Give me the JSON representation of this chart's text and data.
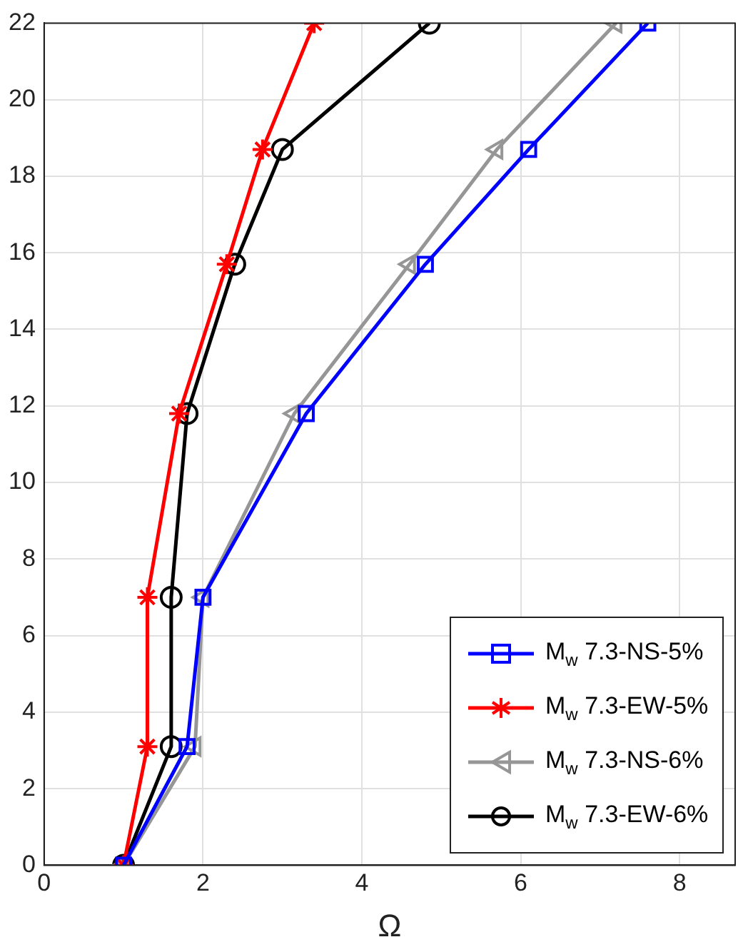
{
  "chart_data": {
    "type": "line",
    "xlabel": "Ω",
    "xlim": [
      0,
      8.7
    ],
    "xticks": [
      0,
      2,
      4,
      6,
      8
    ],
    "ylim": [
      0,
      22
    ],
    "yticks": [
      0,
      2,
      4,
      6,
      8,
      10,
      12,
      14,
      16,
      18,
      20,
      22
    ],
    "grid": true,
    "legend": "bottom right",
    "line_style": "solid",
    "series": [
      {
        "name": "M$_{w}$ 7.3-NS-5%",
        "color": "#0000ff",
        "marker": "square",
        "x": [
          1.0,
          1.8,
          2.0,
          3.3,
          4.8,
          6.1,
          7.6
        ],
        "values": [
          0,
          3.1,
          7,
          11.8,
          15.7,
          18.7,
          22
        ]
      },
      {
        "name": "M$_{w}$ 7.3-EW-5%",
        "color": "#ff0000",
        "marker": "cross",
        "x": [
          1.0,
          1.3,
          1.3,
          1.7,
          2.3,
          2.75,
          3.4
        ],
        "values": [
          0,
          3.1,
          7,
          11.8,
          15.7,
          18.7,
          22
        ]
      },
      {
        "name": "M$_{w}$ 7.3-NS-6%",
        "color": "#969696",
        "marker": "triangle",
        "x": [
          1.0,
          1.9,
          2.0,
          3.15,
          4.6,
          5.7,
          7.2
        ],
        "values": [
          0,
          3.1,
          7,
          11.8,
          15.7,
          18.7,
          22
        ]
      },
      {
        "name": "M$_{w}$ 7.3-EW-6%",
        "color": "#000000",
        "marker": "circle",
        "x": [
          1.0,
          1.6,
          1.6,
          1.8,
          2.4,
          3.0,
          4.85
        ],
        "values": [
          0,
          3.1,
          7,
          11.8,
          15.7,
          18.7,
          22
        ]
      }
    ]
  }
}
